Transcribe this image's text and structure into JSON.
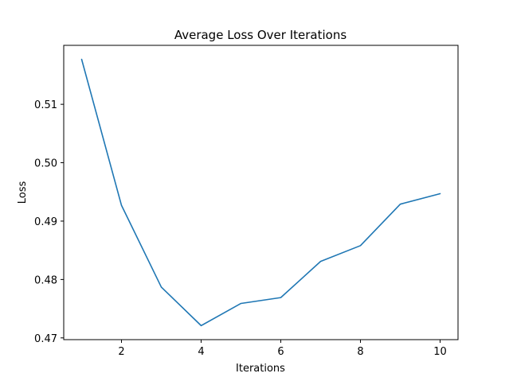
{
  "chart_data": {
    "type": "line",
    "title": "Average Loss Over Iterations",
    "xlabel": "Iterations",
    "ylabel": "Loss",
    "x": [
      1,
      2,
      3,
      4,
      5,
      6,
      7,
      8,
      9,
      10
    ],
    "series": [
      {
        "values": [
          0.5177,
          0.4927,
          0.4787,
          0.4721,
          0.4759,
          0.4769,
          0.4831,
          0.4858,
          0.4929,
          0.4947
        ],
        "color": "#1f77b4"
      }
    ],
    "xlim": [
      0.55,
      10.45
    ],
    "ylim": [
      0.4697,
      0.5201
    ],
    "xticks": [
      2,
      4,
      6,
      8,
      10
    ],
    "xtick_labels": [
      "2",
      "4",
      "6",
      "8",
      "10"
    ],
    "yticks": [
      0.47,
      0.48,
      0.49,
      0.5,
      0.51
    ],
    "ytick_labels": [
      "0.47",
      "0.48",
      "0.49",
      "0.50",
      "0.51"
    ],
    "grid": false,
    "legend": "none"
  }
}
